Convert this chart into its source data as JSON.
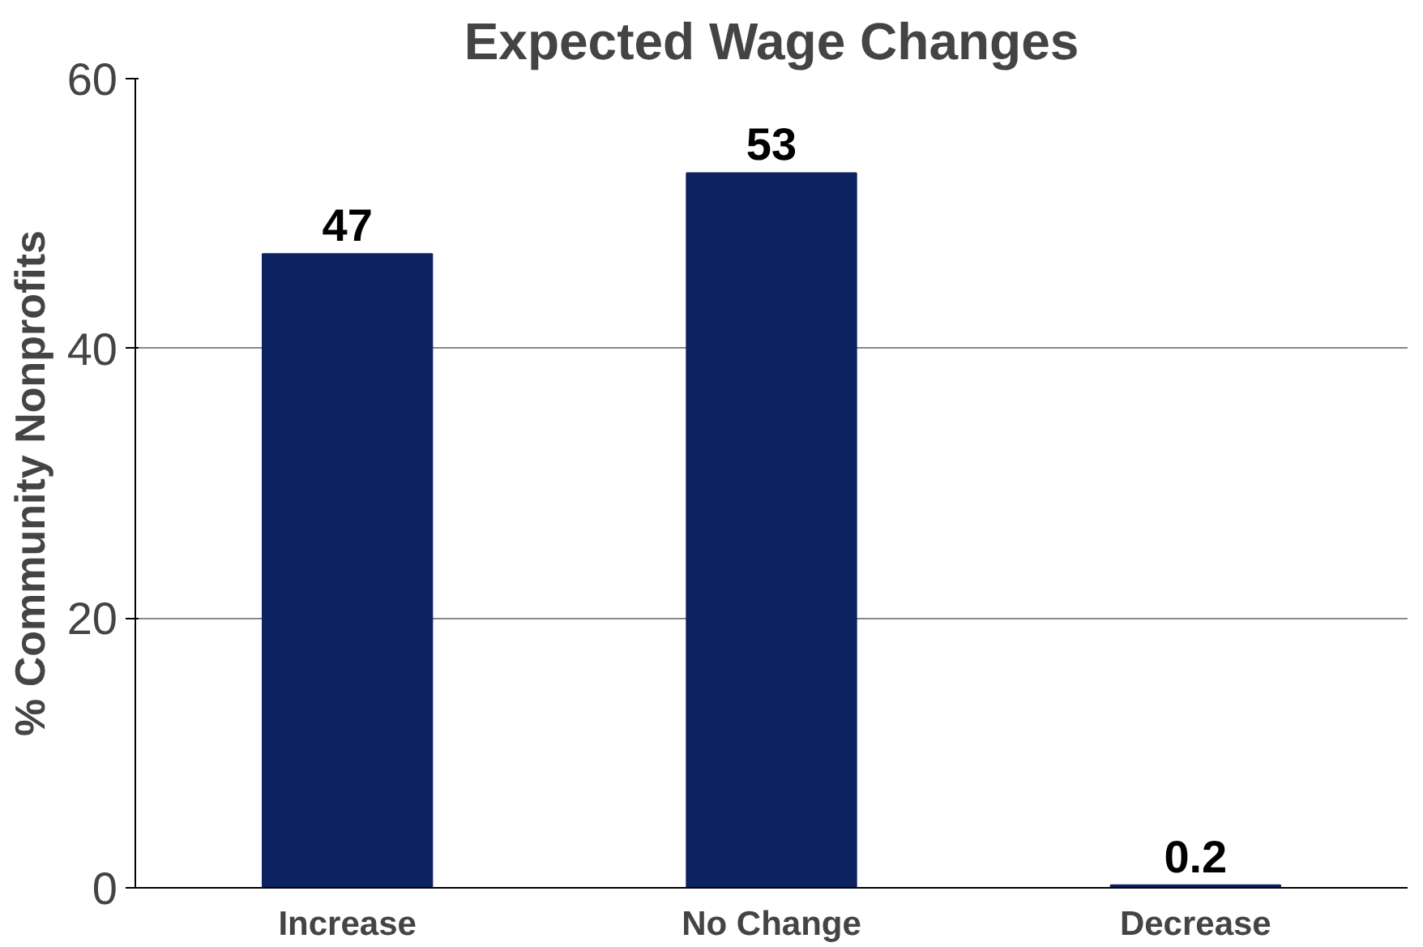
{
  "chart_data": {
    "type": "bar",
    "title": "Expected Wage Changes",
    "ylabel": "% Community Nonprofits",
    "categories": [
      "Increase",
      "No Change",
      "Decrease"
    ],
    "values": [
      47,
      53,
      0.2
    ],
    "color": "#0d2261",
    "ylim": [
      0,
      60
    ],
    "yticks": [
      0,
      20,
      40,
      60
    ],
    "grid": "y",
    "data_labels": true
  }
}
